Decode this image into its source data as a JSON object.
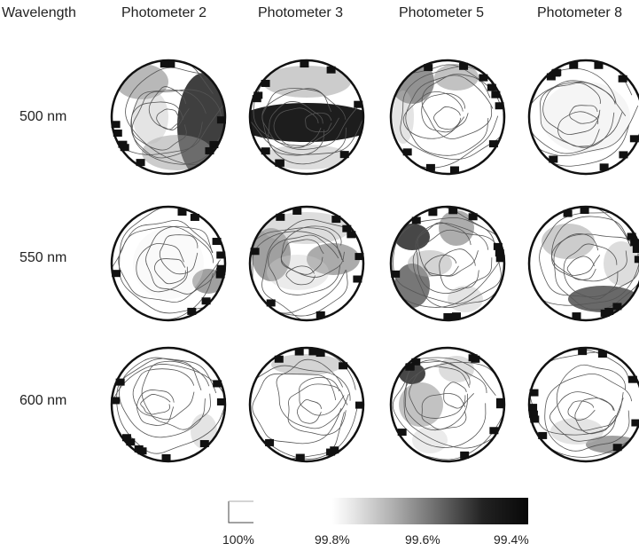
{
  "column_headers": [
    "Wavelength",
    "Photometer 2",
    "Photometer 3",
    "Photometer 5",
    "Photometer 8"
  ],
  "row_labels": [
    "500 nm",
    "550 nm",
    "600 nm"
  ],
  "legend": {
    "labels": [
      "100%",
      "99.8%",
      "99.6%",
      "99.4%"
    ],
    "colors": [
      "#ffffff",
      "#d6d6d6",
      "#8a8a8a",
      "#111111"
    ]
  }
}
